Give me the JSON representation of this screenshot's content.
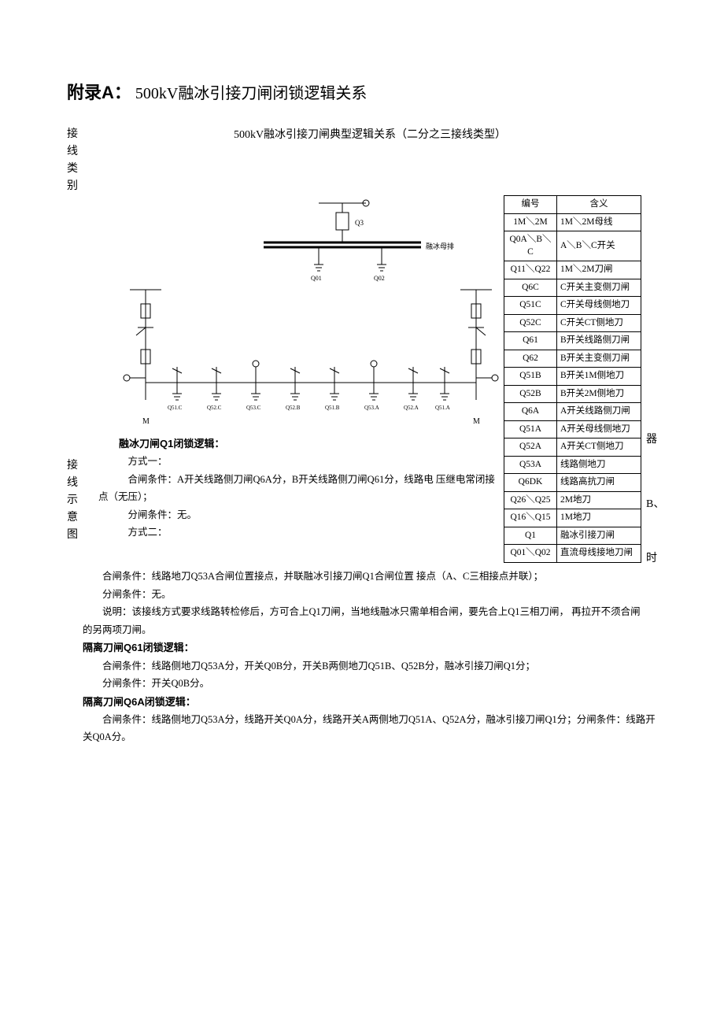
{
  "title": {
    "prefix": "附录A：",
    "rest": "500kV融冰引接刀闸闭锁逻辑关系"
  },
  "leftLabels": {
    "type": "接线类别",
    "diagram": "接线示意图"
  },
  "rightNote": {
    "a": "器",
    "b": "B、",
    "c": "时"
  },
  "subtitle": "500kV融冰引接刀闸典型逻辑关系（二分之三接线类型）",
  "legend": {
    "headers": [
      "编号",
      "含义"
    ],
    "rows": [
      [
        "1M＼2M",
        "1M＼2M母线"
      ],
      [
        "Q0A＼B＼C",
        "A＼B＼C开关"
      ],
      [
        "Q11＼Q22",
        "1M＼2M刀闸"
      ],
      [
        "Q6C",
        "C开关主变侧刀闸"
      ],
      [
        "Q51C",
        "C开关母线侧地刀"
      ],
      [
        "Q52C",
        "C开关CT侧地刀"
      ],
      [
        "Q61",
        "B开关线路侧刀闸"
      ],
      [
        "Q62",
        "B开关主变侧刀闸"
      ],
      [
        "Q51B",
        "B开关1M侧地刀"
      ],
      [
        "Q52B",
        "B开关2M侧地刀"
      ],
      [
        "Q6A",
        "A开关线路侧刀闸"
      ],
      [
        "Q51A",
        "A开关母线侧地刀"
      ],
      [
        "Q52A",
        "A开关CT侧地刀"
      ],
      [
        "Q53A",
        "线路侧地刀"
      ],
      [
        "Q6DK",
        "线路高抗刀闸"
      ],
      [
        "Q26＼Q25",
        "2M地刀"
      ],
      [
        "Q16＼Q15",
        "1M地刀"
      ],
      [
        "Q1",
        "融冰引接刀闸"
      ],
      [
        "Q01＼Q02",
        "直流母线接地刀闸"
      ]
    ]
  },
  "diagram": {
    "busbar": "融冰母排",
    "labels": [
      "Q3",
      "Q01",
      "Q02",
      "Q51.C",
      "Q52.C",
      "Q53.C",
      "Q52.B",
      "Q51.B",
      "Q53.A",
      "Q52.A",
      "Q51.A",
      "M",
      "M"
    ],
    "colors": {
      "line": "#000000",
      "text": "#000000",
      "bg": "#ffffff"
    },
    "line_width": 1
  },
  "logic": {
    "q1_title": "融冰刀闸Q1闭锁逻辑：",
    "q1_mode1": "方式一：",
    "q1_m1_close": "合闸条件：A开关线路侧刀闸Q6A分，B开关线路侧刀闸Q61分，线路电 压继电常闭接点（无压）；",
    "q1_m1_open": "分闸条件：无。",
    "q1_mode2": "方式二：",
    "q1_m2_close": "合闸条件：线路地刀Q53A合闸位置接点，并联融冰引接刀闸Q1合闸位置 接点（A、C三相接点并联）；",
    "q1_m2_open": "分闸条件：无。",
    "q1_note": "说明：该接线方式要求线路转检修后，方可合上Q1刀闸，当地线融冰只需单相合闸，要先合上Q1三相刀闸， 再拉开不须合闸的另两项刀闸。",
    "q61_title": "隔离刀闸Q61闭锁逻辑：",
    "q61_close": "合闸条件：线路侧地刀Q53A分，开关Q0B分，开关B两侧地刀Q51B、Q52B分，融冰引接刀闸Q1分；",
    "q61_open": "分闸条件：开关Q0B分。",
    "q6a_title": "隔离刀闸Q6A闭锁逻辑：",
    "q6a_close": "合闸条件：线路侧地刀Q53A分，线路开关Q0A分，线路开关A两侧地刀Q51A、Q52A分，融冰引接刀闸Q1分；分闸条件：线路开关Q0A分。"
  }
}
